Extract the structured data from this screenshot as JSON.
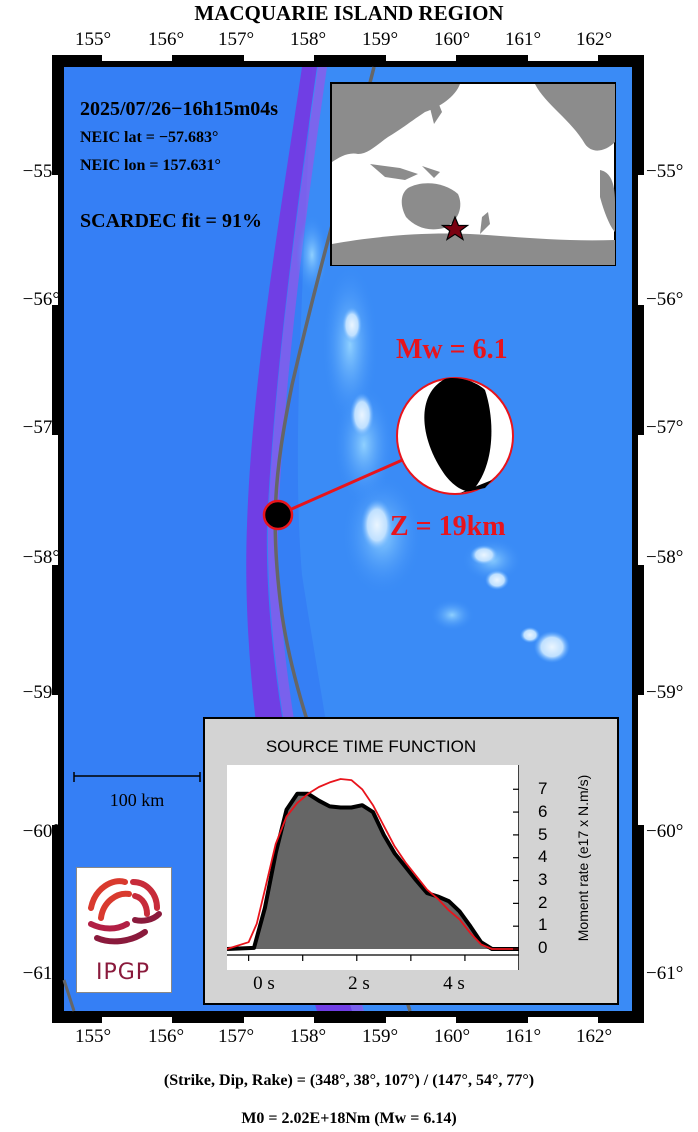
{
  "title": "MACQUARIE ISLAND REGION",
  "lon_ticks": [
    "155°",
    "156°",
    "157°",
    "158°",
    "159°",
    "160°",
    "161°",
    "162°"
  ],
  "lat_ticks": [
    "−55°",
    "−56°",
    "−57°",
    "−58°",
    "−59°",
    "−60°",
    "−61°"
  ],
  "event": {
    "datetime": "2025/07/26−16h15m04s",
    "lat_text": "NEIC lat  = −57.683°",
    "lon_text": "NEIC lon = 157.631°",
    "fit_text": "SCARDEC fit = 91%",
    "mw_text": "Mw = 6.1",
    "depth_text": "Z =  19km"
  },
  "scale_bar": "100 km",
  "logo": {
    "text": "IPGP",
    "color": "#8a1a3c"
  },
  "stf": {
    "title": "SOURCE TIME FUNCTION",
    "ylabel": "Moment rate (e17 x N.m/s)",
    "yticks": [
      "0",
      "1",
      "2",
      "3",
      "4",
      "5",
      "6",
      "7"
    ],
    "xticks": [
      "0 s",
      "2 s",
      "4 s"
    ]
  },
  "chart_data": {
    "type": "area",
    "title": "SOURCE TIME FUNCTION",
    "xlabel": "",
    "ylabel": "Moment rate (e17 x N.m/s)",
    "xlim": [
      -0.4,
      5.0
    ],
    "ylim": [
      0,
      7.8
    ],
    "series": [
      {
        "x": [
          -0.4,
          0.1,
          0.3,
          0.5,
          0.7,
          0.9,
          1.1,
          1.3,
          1.5,
          1.7,
          1.9,
          2.1,
          2.3,
          2.5,
          2.7,
          2.9,
          3.1,
          3.3,
          3.5,
          3.7,
          3.9,
          4.1,
          4.3,
          4.5,
          4.7,
          5.0
        ],
        "y": [
          0,
          0.05,
          1.8,
          4.2,
          6.1,
          6.8,
          6.8,
          6.5,
          6.25,
          6.2,
          6.2,
          6.3,
          6.0,
          5.0,
          4.2,
          3.6,
          3.0,
          2.45,
          2.3,
          2.1,
          1.65,
          1.0,
          0.3,
          0,
          0,
          0
        ],
        "color": "#666666"
      },
      {
        "x": [
          -0.4,
          0.0,
          0.15,
          0.3,
          0.5,
          0.7,
          0.9,
          1.1,
          1.3,
          1.5,
          1.7,
          1.9,
          2.1,
          2.3,
          2.5,
          2.7,
          2.9,
          3.1,
          3.3,
          3.5,
          3.7,
          3.9,
          4.1,
          4.3,
          4.5,
          5.0
        ],
        "y": [
          0,
          0.3,
          1.1,
          2.6,
          4.6,
          5.8,
          6.4,
          6.8,
          7.1,
          7.3,
          7.45,
          7.4,
          7.0,
          6.3,
          5.4,
          4.5,
          3.8,
          3.2,
          2.6,
          2.2,
          1.7,
          1.3,
          0.7,
          0.2,
          0,
          0
        ],
        "color": "#e8141c"
      }
    ]
  },
  "mechanism_text": "(Strike, Dip, Rake) = (348°, 38°, 107°) / (147°, 54°, 77°)",
  "moment_text": "M0 = 2.02E+18Nm  (Mw = 6.14)",
  "colors": {
    "ocean_deep": "#2f6df2",
    "ocean": "#3a8ef8",
    "trench": "#7a32e0",
    "ridge_light": "#c7e4ff",
    "plate_boundary": "#666666",
    "accent_red": "#e8141c",
    "stf_panel": "#d3d3d3"
  }
}
